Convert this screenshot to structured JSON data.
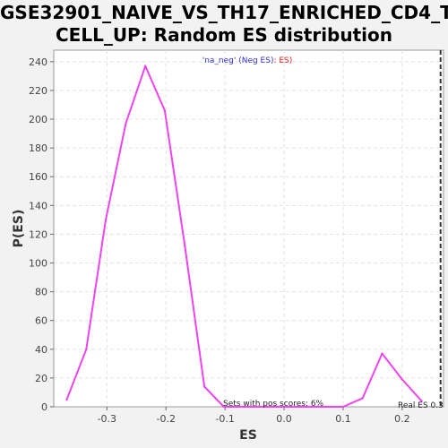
{
  "chart_data": {
    "type": "line",
    "title_line1": "GSE32901_NAIVE_VS_TH17_ENRICHED_CD4_T",
    "title_line2": "CELL_UP: Random ES distribution",
    "xlabel": "ES",
    "ylabel": "P(ES)",
    "xlim": [
      -0.39,
      0.27
    ],
    "ylim": [
      0,
      248
    ],
    "x_ticks": [
      -0.3,
      -0.2,
      -0.1,
      0.0,
      0.1,
      0.2
    ],
    "x_tick_labels": [
      "-0.3",
      "-0.2",
      "-0.1",
      "0.0",
      "0.1",
      "0.2"
    ],
    "y_ticks": [
      0,
      20,
      40,
      60,
      80,
      100,
      120,
      140,
      160,
      180,
      200,
      220,
      240
    ],
    "y_tick_labels": [
      "0",
      "20",
      "40",
      "60",
      "80",
      "100",
      "120",
      "140",
      "160",
      "180",
      "200",
      "220",
      "240"
    ],
    "grid": true,
    "series": [
      {
        "color": "#ee44ee",
        "x": [
          -0.368,
          -0.335,
          -0.302,
          -0.268,
          -0.235,
          -0.202,
          -0.168,
          -0.135,
          -0.102,
          -0.068,
          -0.035,
          0.0,
          0.033,
          0.066,
          0.1,
          0.133,
          0.166,
          0.2,
          0.233
        ],
        "y": [
          5,
          40,
          130,
          197,
          237,
          206,
          112,
          14,
          0,
          0,
          0,
          0,
          0,
          0,
          0,
          6,
          37,
          19,
          4
        ]
      }
    ],
    "real_es": 0.265,
    "legend": {
      "part1": "'na_neg' (Neg ES)",
      "part2": ": ES)",
      "color1": "#3333cc",
      "color2": "#dd2222",
      "placement": "top-center"
    },
    "annotations": {
      "pos_scores": "Sets with pos scores: 6%",
      "real_es": "Real ES 0.3"
    }
  }
}
